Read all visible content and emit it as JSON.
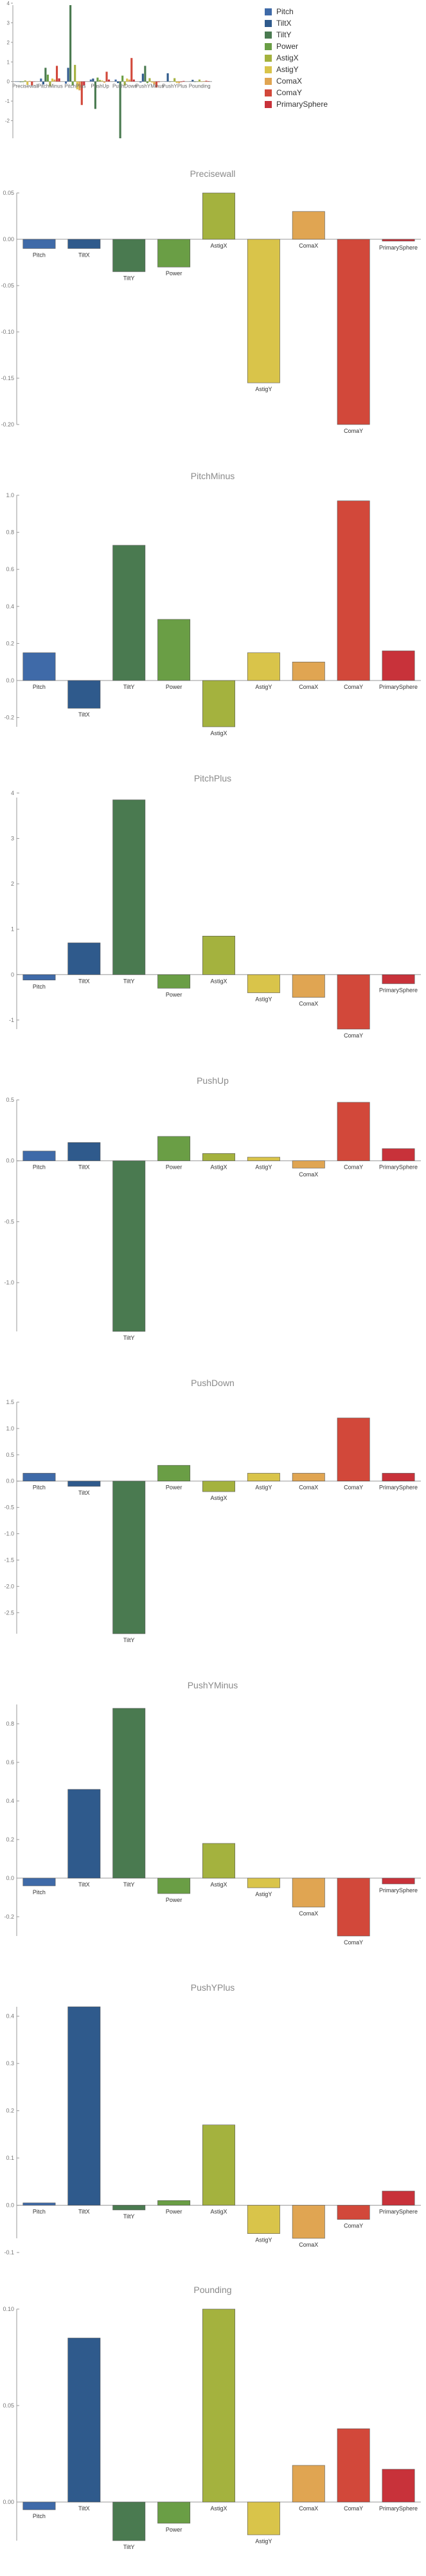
{
  "legend": {
    "items": [
      "Pitch",
      "TiltX",
      "TiltY",
      "Power",
      "AstigX",
      "AstigY",
      "ComaX",
      "ComaY",
      "PrimarySphere"
    ]
  },
  "colors": [
    "#3f6aa8",
    "#2f5a8c",
    "#4a7a50",
    "#6a9e45",
    "#a4b23e",
    "#d9c44a",
    "#e0a552",
    "#d2483a",
    "#c8323a"
  ],
  "chart_data": [
    {
      "type": "bar",
      "title": "",
      "grouped": true,
      "categories": [
        "Precisewall",
        "PitchMinus",
        "PitchPlus",
        "PushUp",
        "PushDown",
        "PushYMinus",
        "PushYPlus",
        "Pounding"
      ],
      "series": [
        {
          "name": "Pitch",
          "values": [
            -0.01,
            0.15,
            -0.1,
            0.1,
            0.1,
            -0.05,
            0.005,
            -0.005
          ]
        },
        {
          "name": "TiltX",
          "values": [
            -0.01,
            -0.15,
            0.7,
            0.15,
            -0.08,
            0.4,
            0.42,
            0.085
          ]
        },
        {
          "name": "TiltY",
          "values": [
            -0.03,
            0.7,
            3.9,
            -1.4,
            -2.9,
            0.8,
            -0.02,
            -0.02
          ]
        },
        {
          "name": "Power",
          "values": [
            -0.03,
            0.35,
            -0.2,
            0.2,
            0.3,
            -0.08,
            0.01,
            -0.012
          ]
        },
        {
          "name": "AstigX",
          "values": [
            0.05,
            -0.25,
            0.85,
            0.08,
            -0.2,
            0.17,
            0.17,
            0.1
          ]
        },
        {
          "name": "AstigY",
          "values": [
            -0.17,
            0.15,
            -0.4,
            0.05,
            0.15,
            -0.05,
            -0.07,
            -0.02
          ]
        },
        {
          "name": "ComaX",
          "values": [
            0.03,
            0.1,
            -0.45,
            -0.06,
            0.1,
            -0.15,
            -0.08,
            0.02
          ]
        },
        {
          "name": "ComaY",
          "values": [
            -0.2,
            0.8,
            -1.2,
            0.5,
            1.2,
            -0.3,
            -0.03,
            0.04
          ]
        },
        {
          "name": "PrimarySphere",
          "values": [
            -0.002,
            0.16,
            -0.2,
            0.1,
            0.1,
            -0.03,
            0.03,
            0.018
          ]
        }
      ],
      "ylim": [
        -2.9,
        3.9
      ],
      "yticks": [
        "-2",
        "-1",
        "0",
        "1",
        "2",
        "3",
        "4"
      ]
    },
    {
      "type": "bar",
      "title": "Precisewall",
      "categories": [
        "Pitch",
        "TiltX",
        "TiltY",
        "Power",
        "AstigX",
        "AstigY",
        "ComaX",
        "ComaY",
        "PrimarySphere"
      ],
      "values": [
        -0.01,
        -0.01,
        -0.035,
        -0.03,
        0.05,
        -0.155,
        0.03,
        -0.2,
        -0.002
      ],
      "ylim": [
        -0.2,
        0.05
      ],
      "yticks": [
        "0.05",
        "0.00",
        "-0.05",
        "-0.10",
        "-0.15",
        "-0.20"
      ]
    },
    {
      "type": "bar",
      "title": "PitchMinus",
      "categories": [
        "Pitch",
        "TiltX",
        "TiltY",
        "Power",
        "AstigX",
        "AstigY",
        "ComaX",
        "ComaY",
        "PrimarySphere"
      ],
      "values": [
        0.15,
        -0.15,
        0.73,
        0.33,
        -0.25,
        0.15,
        0.1,
        0.97,
        0.16
      ],
      "ylim": [
        -0.25,
        1.0
      ],
      "yticks": [
        "1.0",
        "0.8",
        "0.6",
        "0.4",
        "0.2",
        "0.0",
        "-0.2"
      ]
    },
    {
      "type": "bar",
      "title": "PitchPlus",
      "categories": [
        "Pitch",
        "TiltX",
        "TiltY",
        "Power",
        "AstigX",
        "AstigY",
        "ComaX",
        "ComaY",
        "PrimarySphere"
      ],
      "values": [
        -0.12,
        0.7,
        3.85,
        -0.3,
        0.85,
        -0.4,
        -0.5,
        -1.2,
        -0.2
      ],
      "ylim": [
        -1.2,
        3.9
      ],
      "yticks": [
        "4",
        "3",
        "2",
        "1",
        "0",
        "-1"
      ]
    },
    {
      "type": "bar",
      "title": "PushUp",
      "categories": [
        "Pitch",
        "TiltX",
        "TiltY",
        "Power",
        "AstigX",
        "AstigY",
        "ComaX",
        "ComaY",
        "PrimarySphere"
      ],
      "values": [
        0.08,
        0.15,
        -1.4,
        0.2,
        0.06,
        0.03,
        -0.06,
        0.48,
        0.1
      ],
      "ylim": [
        -1.4,
        0.5
      ],
      "yticks": [
        "0.5",
        "0.0",
        "-0.5",
        "-1.0"
      ]
    },
    {
      "type": "bar",
      "title": "PushDown",
      "categories": [
        "Pitch",
        "TiltX",
        "TiltY",
        "Power",
        "AstigX",
        "AstigY",
        "ComaX",
        "ComaY",
        "PrimarySphere"
      ],
      "values": [
        0.15,
        -0.1,
        -2.9,
        0.3,
        -0.2,
        0.15,
        0.15,
        1.2,
        0.15
      ],
      "ylim": [
        -2.9,
        1.5
      ],
      "yticks": [
        "1.5",
        "1.0",
        "0.5",
        "0.0",
        "-0.5",
        "-1.0",
        "-1.5",
        "-2.0",
        "-2.5"
      ]
    },
    {
      "type": "bar",
      "title": "PushYMinus",
      "categories": [
        "Pitch",
        "TiltX",
        "TiltY",
        "Power",
        "AstigX",
        "AstigY",
        "ComaX",
        "ComaY",
        "PrimarySphere"
      ],
      "values": [
        -0.04,
        0.46,
        0.88,
        -0.08,
        0.18,
        -0.05,
        -0.15,
        -0.3,
        -0.03
      ],
      "ylim": [
        -0.3,
        0.9
      ],
      "yticks": [
        "0.8",
        "0.6",
        "0.4",
        "0.2",
        "0.0",
        "-0.2"
      ]
    },
    {
      "type": "bar",
      "title": "PushYPlus",
      "categories": [
        "Pitch",
        "TiltX",
        "TiltY",
        "Power",
        "AstigX",
        "AstigY",
        "ComaX",
        "ComaY",
        "PrimarySphere"
      ],
      "values": [
        0.005,
        0.42,
        -0.01,
        0.01,
        0.17,
        -0.06,
        -0.07,
        -0.03,
        0.03
      ],
      "ylim": [
        -0.07,
        0.42
      ],
      "yticks": [
        "0.4",
        "0.3",
        "0.2",
        "0.1",
        "0.0",
        "-0.1"
      ]
    },
    {
      "type": "bar",
      "title": "Pounding",
      "categories": [
        "Pitch",
        "TiltX",
        "TiltY",
        "Power",
        "AstigX",
        "AstigY",
        "ComaX",
        "ComaY",
        "PrimarySphere"
      ],
      "values": [
        -0.004,
        0.085,
        -0.02,
        -0.011,
        0.1,
        -0.017,
        0.019,
        0.038,
        0.017
      ],
      "ylim": [
        -0.02,
        0.1
      ],
      "yticks": [
        "0.10",
        "0.05",
        "0.00",
        "-0.05"
      ]
    }
  ]
}
